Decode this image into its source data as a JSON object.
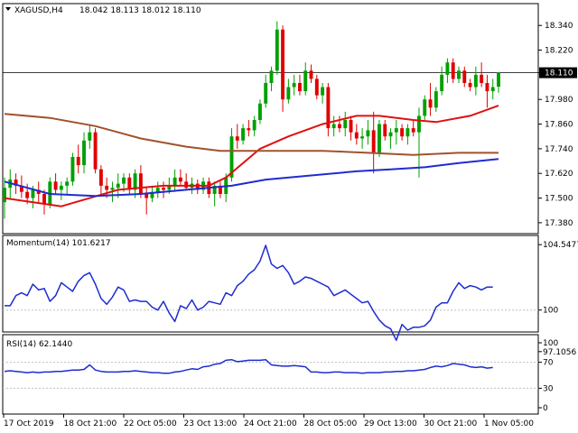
{
  "colors": {
    "background": "#ffffff",
    "frame": "#000000",
    "bull": "#00a000",
    "bear": "#e00000",
    "ma_fast": "#e01010",
    "ma_mid": "#1e2cd0",
    "ma_slow": "#a0522d",
    "oscillator": "#1e2cd0",
    "level_line": "#c0c0c0"
  },
  "chart_data": [
    {
      "type": "candlestick",
      "symbol_label": "XAGUSD,H4",
      "ohlc_label": "18.042 18.113 18.012 18.110",
      "price_tag": "18.110",
      "current_price": 18.11,
      "ylim": [
        17.34,
        18.42
      ],
      "yticks": [
        "18.340",
        "18.220",
        "18.110",
        "17.980",
        "17.860",
        "17.740",
        "17.620",
        "17.500",
        "17.380"
      ],
      "ohlc": [
        [
          17.48,
          17.6,
          17.4,
          17.55
        ],
        [
          17.55,
          17.64,
          17.5,
          17.59
        ],
        [
          17.59,
          17.62,
          17.52,
          17.56
        ],
        [
          17.56,
          17.61,
          17.5,
          17.53
        ],
        [
          17.53,
          17.57,
          17.47,
          17.5
        ],
        [
          17.5,
          17.56,
          17.45,
          17.54
        ],
        [
          17.54,
          17.58,
          17.48,
          17.52
        ],
        [
          17.52,
          17.54,
          17.42,
          17.47
        ],
        [
          17.47,
          17.6,
          17.45,
          17.58
        ],
        [
          17.58,
          17.62,
          17.52,
          17.54
        ],
        [
          17.54,
          17.58,
          17.49,
          17.56
        ],
        [
          17.56,
          17.6,
          17.52,
          17.58
        ],
        [
          17.58,
          17.72,
          17.56,
          17.7
        ],
        [
          17.7,
          17.76,
          17.62,
          17.66
        ],
        [
          17.66,
          17.82,
          17.62,
          17.78
        ],
        [
          17.78,
          17.86,
          17.74,
          17.82
        ],
        [
          17.82,
          17.84,
          17.62,
          17.64
        ],
        [
          17.64,
          17.66,
          17.52,
          17.56
        ],
        [
          17.56,
          17.6,
          17.5,
          17.54
        ],
        [
          17.54,
          17.58,
          17.48,
          17.55
        ],
        [
          17.55,
          17.62,
          17.5,
          17.57
        ],
        [
          17.57,
          17.62,
          17.53,
          17.6
        ],
        [
          17.6,
          17.62,
          17.52,
          17.54
        ],
        [
          17.54,
          17.64,
          17.5,
          17.62
        ],
        [
          17.62,
          17.66,
          17.5,
          17.52
        ],
        [
          17.52,
          17.55,
          17.42,
          17.5
        ],
        [
          17.5,
          17.56,
          17.48,
          17.53
        ],
        [
          17.53,
          17.58,
          17.5,
          17.55
        ],
        [
          17.55,
          17.58,
          17.5,
          17.54
        ],
        [
          17.54,
          17.6,
          17.52,
          17.56
        ],
        [
          17.56,
          17.64,
          17.53,
          17.6
        ],
        [
          17.6,
          17.64,
          17.56,
          17.58
        ],
        [
          17.58,
          17.62,
          17.54,
          17.55
        ],
        [
          17.55,
          17.6,
          17.52,
          17.57
        ],
        [
          17.57,
          17.59,
          17.52,
          17.54
        ],
        [
          17.54,
          17.6,
          17.52,
          17.58
        ],
        [
          17.58,
          17.6,
          17.5,
          17.52
        ],
        [
          17.52,
          17.58,
          17.46,
          17.56
        ],
        [
          17.56,
          17.58,
          17.5,
          17.52
        ],
        [
          17.52,
          17.62,
          17.48,
          17.6
        ],
        [
          17.6,
          17.84,
          17.58,
          17.8
        ],
        [
          17.8,
          17.86,
          17.74,
          17.78
        ],
        [
          17.78,
          17.86,
          17.76,
          17.84
        ],
        [
          17.84,
          17.88,
          17.8,
          17.83
        ],
        [
          17.83,
          17.9,
          17.8,
          17.88
        ],
        [
          17.88,
          17.98,
          17.86,
          17.96
        ],
        [
          17.96,
          18.1,
          17.94,
          18.06
        ],
        [
          18.06,
          18.14,
          18.02,
          18.12
        ],
        [
          18.12,
          18.36,
          18.1,
          18.32
        ],
        [
          18.32,
          18.34,
          17.92,
          17.98
        ],
        [
          17.98,
          18.08,
          17.96,
          18.04
        ],
        [
          18.04,
          18.1,
          18.0,
          18.06
        ],
        [
          18.06,
          18.1,
          18.0,
          18.02
        ],
        [
          18.02,
          18.16,
          18.0,
          18.12
        ],
        [
          18.12,
          18.15,
          18.06,
          18.08
        ],
        [
          18.08,
          18.1,
          17.98,
          18.0
        ],
        [
          18.0,
          18.06,
          17.96,
          18.04
        ],
        [
          18.04,
          18.06,
          17.8,
          17.84
        ],
        [
          17.84,
          17.9,
          17.8,
          17.86
        ],
        [
          17.86,
          17.9,
          17.82,
          17.84
        ],
        [
          17.84,
          17.92,
          17.8,
          17.88
        ],
        [
          17.88,
          17.9,
          17.78,
          17.82
        ],
        [
          17.82,
          17.86,
          17.76,
          17.79
        ],
        [
          17.79,
          17.84,
          17.74,
          17.8
        ],
        [
          17.8,
          17.88,
          17.76,
          17.83
        ],
        [
          17.83,
          17.92,
          17.62,
          17.72
        ],
        [
          17.72,
          17.88,
          17.7,
          17.86
        ],
        [
          17.86,
          17.88,
          17.78,
          17.8
        ],
        [
          17.8,
          17.84,
          17.74,
          17.82
        ],
        [
          17.82,
          17.88,
          17.76,
          17.84
        ],
        [
          17.84,
          17.86,
          17.78,
          17.8
        ],
        [
          17.8,
          17.86,
          17.76,
          17.84
        ],
        [
          17.84,
          17.88,
          17.8,
          17.82
        ],
        [
          17.82,
          17.94,
          17.6,
          17.9
        ],
        [
          17.9,
          18.0,
          17.88,
          17.98
        ],
        [
          17.98,
          18.06,
          17.9,
          17.94
        ],
        [
          17.94,
          18.04,
          17.92,
          18.02
        ],
        [
          18.02,
          18.14,
          18.0,
          18.1
        ],
        [
          18.1,
          18.18,
          18.06,
          18.16
        ],
        [
          18.16,
          18.18,
          18.06,
          18.08
        ],
        [
          18.08,
          18.14,
          18.06,
          18.12
        ],
        [
          18.12,
          18.14,
          18.04,
          18.06
        ],
        [
          18.06,
          18.08,
          18.02,
          18.04
        ],
        [
          18.04,
          18.14,
          18.0,
          18.1
        ],
        [
          18.1,
          18.16,
          18.04,
          18.06
        ],
        [
          18.06,
          18.1,
          17.94,
          18.02
        ],
        [
          18.02,
          18.08,
          17.98,
          18.04
        ],
        [
          18.042,
          18.113,
          18.012,
          18.11
        ]
      ],
      "series": [
        {
          "color_key": "ma_fast",
          "points": [
            [
              0,
              17.5
            ],
            [
              10,
              17.46
            ],
            [
              15,
              17.5
            ],
            [
              20,
              17.54
            ],
            [
              28,
              17.56
            ],
            [
              36,
              17.56
            ],
            [
              39,
              17.6
            ],
            [
              45,
              17.74
            ],
            [
              50,
              17.8
            ],
            [
              56,
              17.86
            ],
            [
              62,
              17.9
            ],
            [
              66,
              17.9
            ],
            [
              72,
              17.88
            ],
            [
              76,
              17.87
            ],
            [
              82,
              17.9
            ],
            [
              87,
              17.95
            ]
          ]
        },
        {
          "color_key": "ma_mid",
          "points": [
            [
              0,
              17.58
            ],
            [
              8,
              17.52
            ],
            [
              16,
              17.51
            ],
            [
              24,
              17.52
            ],
            [
              32,
              17.54
            ],
            [
              40,
              17.56
            ],
            [
              46,
              17.59
            ],
            [
              54,
              17.61
            ],
            [
              62,
              17.63
            ],
            [
              68,
              17.64
            ],
            [
              74,
              17.65
            ],
            [
              80,
              17.67
            ],
            [
              87,
              17.69
            ]
          ]
        },
        {
          "color_key": "ma_slow",
          "points": [
            [
              0,
              17.91
            ],
            [
              8,
              17.89
            ],
            [
              16,
              17.85
            ],
            [
              24,
              17.79
            ],
            [
              32,
              17.75
            ],
            [
              38,
              17.73
            ],
            [
              46,
              17.73
            ],
            [
              56,
              17.73
            ],
            [
              64,
              17.72
            ],
            [
              72,
              17.71
            ],
            [
              80,
              17.72
            ],
            [
              87,
              17.72
            ]
          ]
        }
      ]
    },
    {
      "type": "line",
      "label": "Momentum(14) 101.6217",
      "ylim": [
        98.6,
        105.0
      ],
      "yticks": [
        "104.5477",
        "100",
        "97.1056"
      ],
      "level": 100,
      "values": [
        100.3,
        100.3,
        101.0,
        101.2,
        101.0,
        101.8,
        101.4,
        101.5,
        100.6,
        101.0,
        101.9,
        101.6,
        101.3,
        102.0,
        102.4,
        102.6,
        101.8,
        100.8,
        100.4,
        100.9,
        101.6,
        101.4,
        100.6,
        100.7,
        100.6,
        100.6,
        100.2,
        100.0,
        100.6,
        99.8,
        99.2,
        100.3,
        100.1,
        100.7,
        100.0,
        100.2,
        100.6,
        100.5,
        100.4,
        101.2,
        101.0,
        101.7,
        102.0,
        102.5,
        102.8,
        103.4,
        104.5,
        103.2,
        102.9,
        103.1,
        102.6,
        101.8,
        102.0,
        102.3,
        102.2,
        102.0,
        101.8,
        101.6,
        101.0,
        101.2,
        101.4,
        101.1,
        100.8,
        100.5,
        100.6,
        99.9,
        99.3,
        98.9,
        98.7,
        97.9,
        99.0,
        98.6,
        98.8,
        98.8,
        98.9,
        99.3,
        100.2,
        100.5,
        100.5,
        101.3,
        101.9,
        101.5,
        101.7,
        101.6,
        101.4,
        101.6,
        101.6
      ]
    },
    {
      "type": "line",
      "label": "RSI(14) 62.1440",
      "ylim": [
        0,
        100
      ],
      "yticks": [
        "100",
        "70",
        "30",
        "0"
      ],
      "levels": [
        70,
        30
      ],
      "values": [
        56,
        57,
        56,
        55,
        54,
        55,
        54,
        55,
        55,
        56,
        56,
        57,
        58,
        58,
        59,
        66,
        58,
        56,
        55,
        55,
        55,
        56,
        56,
        57,
        56,
        55,
        54,
        54,
        53,
        53,
        55,
        56,
        58,
        60,
        59,
        63,
        64,
        67,
        68,
        73,
        74,
        71,
        72,
        73,
        73,
        73,
        74,
        66,
        65,
        64,
        64,
        65,
        64,
        63,
        55,
        55,
        54,
        54,
        55,
        55,
        54,
        54,
        54,
        53,
        54,
        54,
        54,
        55,
        55,
        56,
        56,
        57,
        57,
        58,
        59,
        62,
        64,
        63,
        65,
        68,
        67,
        66,
        63,
        62,
        63,
        61,
        62
      ]
    }
  ],
  "time_axis": {
    "labels": [
      "17 Oct 2019",
      "18 Oct 21:00",
      "22 Oct 05:00",
      "23 Oct 13:00",
      "24 Oct 21:00",
      "28 Oct 05:00",
      "29 Oct 13:00",
      "30 Oct 21:00",
      "1 Nov 05:00"
    ]
  }
}
